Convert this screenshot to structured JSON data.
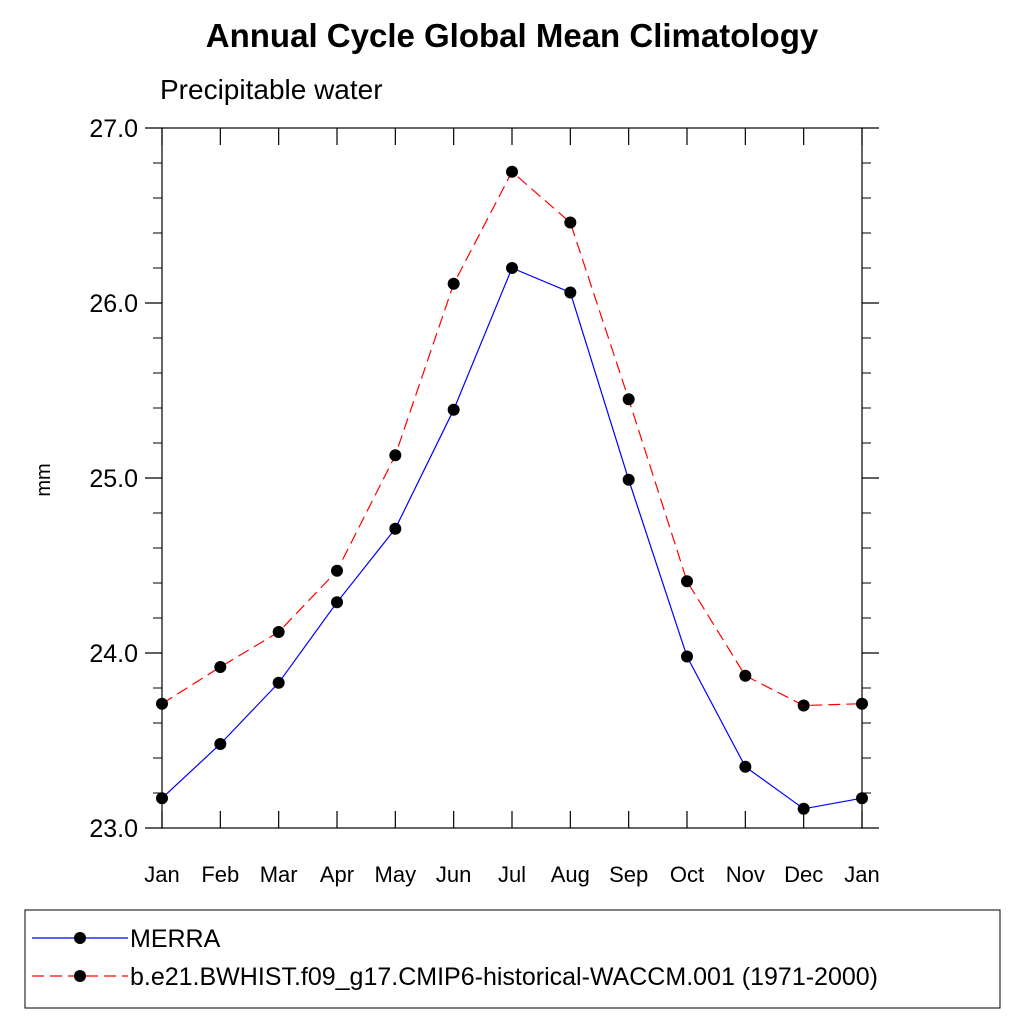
{
  "chart_data": {
    "type": "line",
    "title": "Annual Cycle Global Mean Climatology",
    "subtitle": "Precipitable water",
    "xlabel": "",
    "ylabel": "mm",
    "categories": [
      "Jan",
      "Feb",
      "Mar",
      "Apr",
      "May",
      "Jun",
      "Jul",
      "Aug",
      "Sep",
      "Oct",
      "Nov",
      "Dec",
      "Jan"
    ],
    "ylim": [
      23.0,
      27.0
    ],
    "yticks": [
      "23.0",
      "24.0",
      "25.0",
      "26.0",
      "27.0"
    ],
    "grid": false,
    "legend_position": "bottom",
    "series": [
      {
        "name": "MERRA",
        "color": "#0000ff",
        "line_style": "solid",
        "marker": "filled-circle",
        "values": [
          23.17,
          23.48,
          23.83,
          24.29,
          24.71,
          25.39,
          26.2,
          26.06,
          24.99,
          23.98,
          23.35,
          23.11,
          23.17
        ]
      },
      {
        "name": "b.e21.BWHIST.f09_g17.CMIP6-historical-WACCM.001 (1971-2000)",
        "color": "#ff0000",
        "line_style": "dashed",
        "marker": "filled-circle",
        "values": [
          23.71,
          23.92,
          24.12,
          24.47,
          25.13,
          26.11,
          26.75,
          26.46,
          25.45,
          24.41,
          23.87,
          23.7,
          23.71
        ]
      }
    ]
  }
}
